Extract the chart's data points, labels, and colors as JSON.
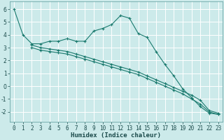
{
  "xlabel": "Humidex (Indice chaleur)",
  "background_color": "#cceaea",
  "grid_color": "#b0d8d8",
  "line_color": "#1a7a6e",
  "x_ticks": [
    0,
    1,
    2,
    3,
    4,
    5,
    6,
    7,
    8,
    9,
    10,
    11,
    12,
    13,
    14,
    15,
    16,
    17,
    18,
    19,
    20,
    21,
    22,
    23
  ],
  "y_ticks": [
    -2,
    -1,
    0,
    1,
    2,
    3,
    4,
    5,
    6
  ],
  "ylim": [
    -2.8,
    6.6
  ],
  "xlim": [
    -0.5,
    23.5
  ],
  "line1_x": [
    0,
    1,
    2,
    3,
    4,
    5,
    6,
    7,
    8,
    9,
    10,
    11,
    12,
    13,
    14,
    15,
    16,
    17,
    18,
    19,
    20,
    21,
    22,
    23
  ],
  "line1_y": [
    6.0,
    4.0,
    3.3,
    3.3,
    3.5,
    3.5,
    3.7,
    3.5,
    3.5,
    4.3,
    4.5,
    4.8,
    5.5,
    5.3,
    4.1,
    3.8,
    2.7,
    1.7,
    0.8,
    -0.2,
    -0.9,
    -1.6,
    -2.1,
    -2.2
  ],
  "line2_x": [
    2,
    3,
    4,
    5,
    6,
    7,
    8,
    9,
    10,
    11,
    12,
    13,
    14,
    15,
    16,
    17,
    18,
    19,
    20,
    21,
    22,
    23
  ],
  "line2_y": [
    3.2,
    3.0,
    2.9,
    2.8,
    2.7,
    2.5,
    2.3,
    2.1,
    1.9,
    1.7,
    1.5,
    1.3,
    1.1,
    0.8,
    0.5,
    0.2,
    -0.1,
    -0.4,
    -0.7,
    -1.1,
    -1.9,
    -2.1
  ],
  "line3_x": [
    2,
    3,
    4,
    5,
    6,
    7,
    8,
    9,
    10,
    11,
    12,
    13,
    14,
    15,
    16,
    17,
    18,
    19,
    20,
    21,
    22,
    23
  ],
  "line3_y": [
    3.0,
    2.8,
    2.7,
    2.6,
    2.5,
    2.3,
    2.1,
    1.9,
    1.7,
    1.5,
    1.3,
    1.1,
    0.9,
    0.6,
    0.3,
    0.0,
    -0.3,
    -0.6,
    -1.0,
    -1.4,
    -2.0,
    -2.2
  ]
}
